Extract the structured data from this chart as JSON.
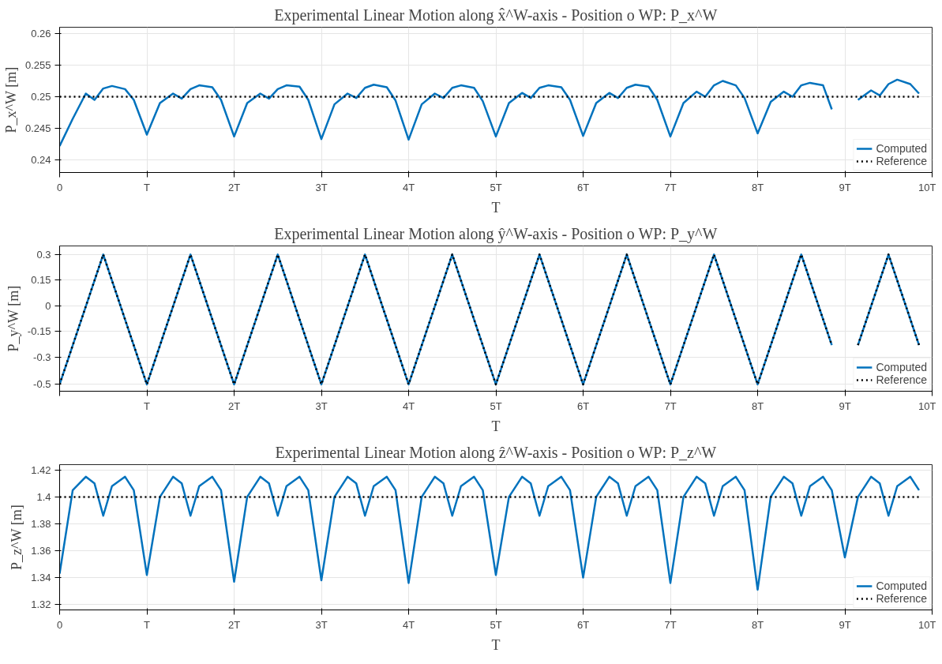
{
  "chart_data": [
    {
      "type": "line",
      "title": "Experimental Linear Motion along x̂^W-axis - Position o WP: P_x^W",
      "xlabel": "T",
      "ylabel": "P_x^W [m]",
      "xlim": [
        0,
        10
      ],
      "xticks": [
        0,
        {
          "value": 1,
          "label": "T"
        },
        {
          "value": 2,
          "label": "2T"
        },
        {
          "value": 3,
          "label": "3T"
        },
        {
          "value": 4,
          "label": "4T"
        },
        {
          "value": 5,
          "label": "5T"
        },
        {
          "value": 6,
          "label": "6T"
        },
        {
          "value": 7,
          "label": "7T"
        },
        {
          "value": 8,
          "label": "8T"
        },
        {
          "value": 9,
          "label": "9T"
        },
        {
          "value": 10,
          "label": "10T"
        }
      ],
      "ylim": [
        0.238,
        0.261
      ],
      "yticks": [
        0.24,
        0.245,
        0.25,
        0.255,
        0.26
      ],
      "grid": true,
      "legend": "bottom right",
      "x": [
        0,
        0.15,
        0.3,
        0.4,
        0.5,
        0.6,
        0.75,
        0.85,
        1,
        1.15,
        1.3,
        1.4,
        1.5,
        1.6,
        1.75,
        1.85,
        2,
        2.15,
        2.3,
        2.4,
        2.5,
        2.6,
        2.75,
        2.85,
        3,
        3.15,
        3.3,
        3.4,
        3.5,
        3.6,
        3.75,
        3.85,
        4,
        4.15,
        4.3,
        4.4,
        4.5,
        4.6,
        4.75,
        4.85,
        5,
        5.15,
        5.3,
        5.4,
        5.5,
        5.6,
        5.75,
        5.85,
        6,
        6.15,
        6.3,
        6.4,
        6.5,
        6.6,
        6.75,
        6.85,
        7,
        7.15,
        7.3,
        7.4,
        7.5,
        7.6,
        7.75,
        7.85,
        8,
        8.15,
        8.3,
        8.4,
        8.5,
        8.6,
        8.75,
        8.85,
        9,
        9.15,
        9.3,
        9.4,
        9.5,
        9.6,
        9.75,
        9.85
      ],
      "series": [
        {
          "name": "Computed",
          "color": "#0072bd",
          "line_style": "solid",
          "values": [
            0.2422,
            0.2465,
            0.2505,
            0.2495,
            0.2513,
            0.2517,
            0.2512,
            0.2495,
            0.244,
            0.249,
            0.2505,
            0.2497,
            0.2512,
            0.2518,
            0.2515,
            0.2495,
            0.2437,
            0.249,
            0.2505,
            0.2497,
            0.2512,
            0.2518,
            0.2516,
            0.2495,
            0.2433,
            0.2488,
            0.2505,
            0.2498,
            0.2514,
            0.2519,
            0.2515,
            0.2494,
            0.2432,
            0.2488,
            0.2505,
            0.2498,
            0.2514,
            0.2518,
            0.2514,
            0.2493,
            0.2437,
            0.249,
            0.2506,
            0.2498,
            0.2514,
            0.2518,
            0.2515,
            0.2495,
            0.2438,
            0.249,
            0.2506,
            0.2498,
            0.2514,
            0.2519,
            0.2516,
            0.2495,
            0.2437,
            0.249,
            0.2508,
            0.25,
            0.2518,
            0.2525,
            0.2518,
            0.2498,
            0.2442,
            0.2492,
            0.2508,
            0.25,
            0.2518,
            0.2522,
            0.2518,
            0.248,
            null,
            0.2495,
            0.251,
            0.2502,
            0.252,
            0.2527,
            0.252,
            0.2505
          ]
        },
        {
          "name": "Reference",
          "color": "#000000",
          "line_style": "dotted",
          "values": [
            0.25,
            0.25,
            0.25,
            0.25,
            0.25,
            0.25,
            0.25,
            0.25,
            0.25,
            0.25,
            0.25,
            0.25,
            0.25,
            0.25,
            0.25,
            0.25,
            0.25,
            0.25,
            0.25,
            0.25,
            0.25,
            0.25,
            0.25,
            0.25,
            0.25,
            0.25,
            0.25,
            0.25,
            0.25,
            0.25,
            0.25,
            0.25,
            0.25,
            0.25,
            0.25,
            0.25,
            0.25,
            0.25,
            0.25,
            0.25,
            0.25,
            0.25,
            0.25,
            0.25,
            0.25,
            0.25,
            0.25,
            0.25,
            0.25,
            0.25,
            0.25,
            0.25,
            0.25,
            0.25,
            0.25,
            0.25,
            0.25,
            0.25,
            0.25,
            0.25,
            0.25,
            0.25,
            0.25,
            0.25,
            0.25,
            0.25,
            0.25,
            0.25,
            0.25,
            0.25,
            0.25,
            0.25,
            0.25,
            0.25,
            0.25,
            0.25,
            0.25,
            0.25,
            0.25,
            0.25
          ]
        }
      ]
    },
    {
      "type": "line",
      "title": "Experimental Linear Motion along ŷ^W-axis - Position o WP: P_y^W",
      "xlabel": "T",
      "ylabel": "P_y^W [m]",
      "xlim": [
        0,
        10
      ],
      "xticks": [
        {
          "value": 0,
          "label": null
        },
        {
          "value": 1,
          "label": "T"
        },
        {
          "value": 2,
          "label": "2T"
        },
        {
          "value": 3,
          "label": "3T"
        },
        {
          "value": 4,
          "label": "4T"
        },
        {
          "value": 5,
          "label": "5T"
        },
        {
          "value": 6,
          "label": "6T"
        },
        {
          "value": 7,
          "label": "7T"
        },
        {
          "value": 8,
          "label": "8T"
        },
        {
          "value": 9,
          "label": "9T"
        },
        {
          "value": 10,
          "label": "10T"
        }
      ],
      "ylim": [
        -0.5,
        0.35
      ],
      "yticks": [
        0.3,
        0.15,
        0,
        -0.15,
        -0.3,
        {
          "value": -0.46,
          "label": "-0.5"
        }
      ],
      "grid": true,
      "legend": "bottom right",
      "x": [
        0,
        0.5,
        1,
        1.5,
        2,
        2.5,
        3,
        3.5,
        4,
        4.5,
        5,
        5.5,
        6,
        6.5,
        7,
        7.5,
        8,
        8.5,
        8.85,
        9,
        9.15,
        9.5,
        9.85
      ],
      "series": [
        {
          "name": "Computed",
          "color": "#0072bd",
          "line_style": "solid",
          "values": [
            -0.46,
            0.3,
            -0.46,
            0.3,
            -0.46,
            0.3,
            -0.46,
            0.3,
            -0.46,
            0.3,
            -0.46,
            0.3,
            -0.46,
            0.3,
            -0.46,
            0.3,
            -0.46,
            0.3,
            -0.23,
            null,
            -0.23,
            0.3,
            -0.23
          ]
        },
        {
          "name": "Reference",
          "color": "#000000",
          "line_style": "dotted",
          "values": [
            -0.46,
            0.3,
            -0.46,
            0.3,
            -0.46,
            0.3,
            -0.46,
            0.3,
            -0.46,
            0.3,
            -0.46,
            0.3,
            -0.46,
            0.3,
            -0.46,
            0.3,
            -0.46,
            0.3,
            -0.23,
            null,
            -0.23,
            0.3,
            -0.23
          ]
        }
      ]
    },
    {
      "type": "line",
      "title": "Experimental Linear Motion along ẑ^W-axis - Position o WP: P_z^W",
      "xlabel": "T",
      "ylabel": "P_z^W [m]",
      "xlim": [
        0,
        10
      ],
      "xticks": [
        0,
        {
          "value": 1,
          "label": "T"
        },
        {
          "value": 2,
          "label": "2T"
        },
        {
          "value": 3,
          "label": "3T"
        },
        {
          "value": 4,
          "label": "4T"
        },
        {
          "value": 5,
          "label": "5T"
        },
        {
          "value": 6,
          "label": "6T"
        },
        {
          "value": 7,
          "label": "7T"
        },
        {
          "value": 8,
          "label": "8T"
        },
        {
          "value": 9,
          "label": "9T"
        },
        {
          "value": 10,
          "label": "10T"
        }
      ],
      "ylim": [
        1.316,
        1.424
      ],
      "yticks": [
        1.32,
        1.34,
        1.36,
        1.38,
        1.4,
        1.42
      ],
      "grid": true,
      "legend": "bottom right",
      "x": [
        0,
        0.15,
        0.3,
        0.4,
        0.5,
        0.6,
        0.75,
        0.85,
        1,
        1.15,
        1.3,
        1.4,
        1.5,
        1.6,
        1.75,
        1.85,
        2,
        2.15,
        2.3,
        2.4,
        2.5,
        2.6,
        2.75,
        2.85,
        3,
        3.15,
        3.3,
        3.4,
        3.5,
        3.6,
        3.75,
        3.85,
        4,
        4.15,
        4.3,
        4.4,
        4.5,
        4.6,
        4.75,
        4.85,
        5,
        5.15,
        5.3,
        5.4,
        5.5,
        5.6,
        5.75,
        5.85,
        6,
        6.15,
        6.3,
        6.4,
        6.5,
        6.6,
        6.75,
        6.85,
        7,
        7.15,
        7.3,
        7.4,
        7.5,
        7.6,
        7.75,
        7.85,
        8,
        8.15,
        8.3,
        8.4,
        8.5,
        8.6,
        8.75,
        8.85,
        9,
        9.15,
        9.3,
        9.4,
        9.5,
        9.6,
        9.75,
        9.85
      ],
      "series": [
        {
          "name": "Computed",
          "color": "#0072bd",
          "line_style": "solid",
          "values": [
            1.343,
            1.405,
            1.415,
            1.41,
            1.386,
            1.408,
            1.415,
            1.405,
            1.342,
            1.4,
            1.415,
            1.41,
            1.386,
            1.408,
            1.415,
            1.405,
            1.337,
            1.4,
            1.415,
            1.41,
            1.386,
            1.408,
            1.415,
            1.405,
            1.338,
            1.4,
            1.415,
            1.41,
            1.386,
            1.408,
            1.415,
            1.405,
            1.336,
            1.4,
            1.415,
            1.41,
            1.386,
            1.408,
            1.415,
            1.405,
            1.342,
            1.4,
            1.415,
            1.41,
            1.386,
            1.408,
            1.415,
            1.405,
            1.34,
            1.4,
            1.415,
            1.41,
            1.386,
            1.408,
            1.415,
            1.405,
            1.336,
            1.4,
            1.415,
            1.41,
            1.386,
            1.408,
            1.415,
            1.405,
            1.331,
            1.4,
            1.415,
            1.41,
            1.386,
            1.408,
            1.415,
            1.405,
            1.355,
            1.4,
            1.415,
            1.41,
            1.386,
            1.408,
            1.415,
            1.405
          ]
        },
        {
          "name": "Reference",
          "color": "#000000",
          "line_style": "dotted",
          "values": [
            1.4,
            1.4,
            1.4,
            1.4,
            1.4,
            1.4,
            1.4,
            1.4,
            1.4,
            1.4,
            1.4,
            1.4,
            1.4,
            1.4,
            1.4,
            1.4,
            1.4,
            1.4,
            1.4,
            1.4,
            1.4,
            1.4,
            1.4,
            1.4,
            1.4,
            1.4,
            1.4,
            1.4,
            1.4,
            1.4,
            1.4,
            1.4,
            1.4,
            1.4,
            1.4,
            1.4,
            1.4,
            1.4,
            1.4,
            1.4,
            1.4,
            1.4,
            1.4,
            1.4,
            1.4,
            1.4,
            1.4,
            1.4,
            1.4,
            1.4,
            1.4,
            1.4,
            1.4,
            1.4,
            1.4,
            1.4,
            1.4,
            1.4,
            1.4,
            1.4,
            1.4,
            1.4,
            1.4,
            1.4,
            1.4,
            1.4,
            1.4,
            1.4,
            1.4,
            1.4,
            1.4,
            1.4,
            1.4,
            1.4,
            1.4,
            1.4,
            1.4,
            1.4,
            1.4,
            1.4
          ]
        }
      ]
    }
  ]
}
